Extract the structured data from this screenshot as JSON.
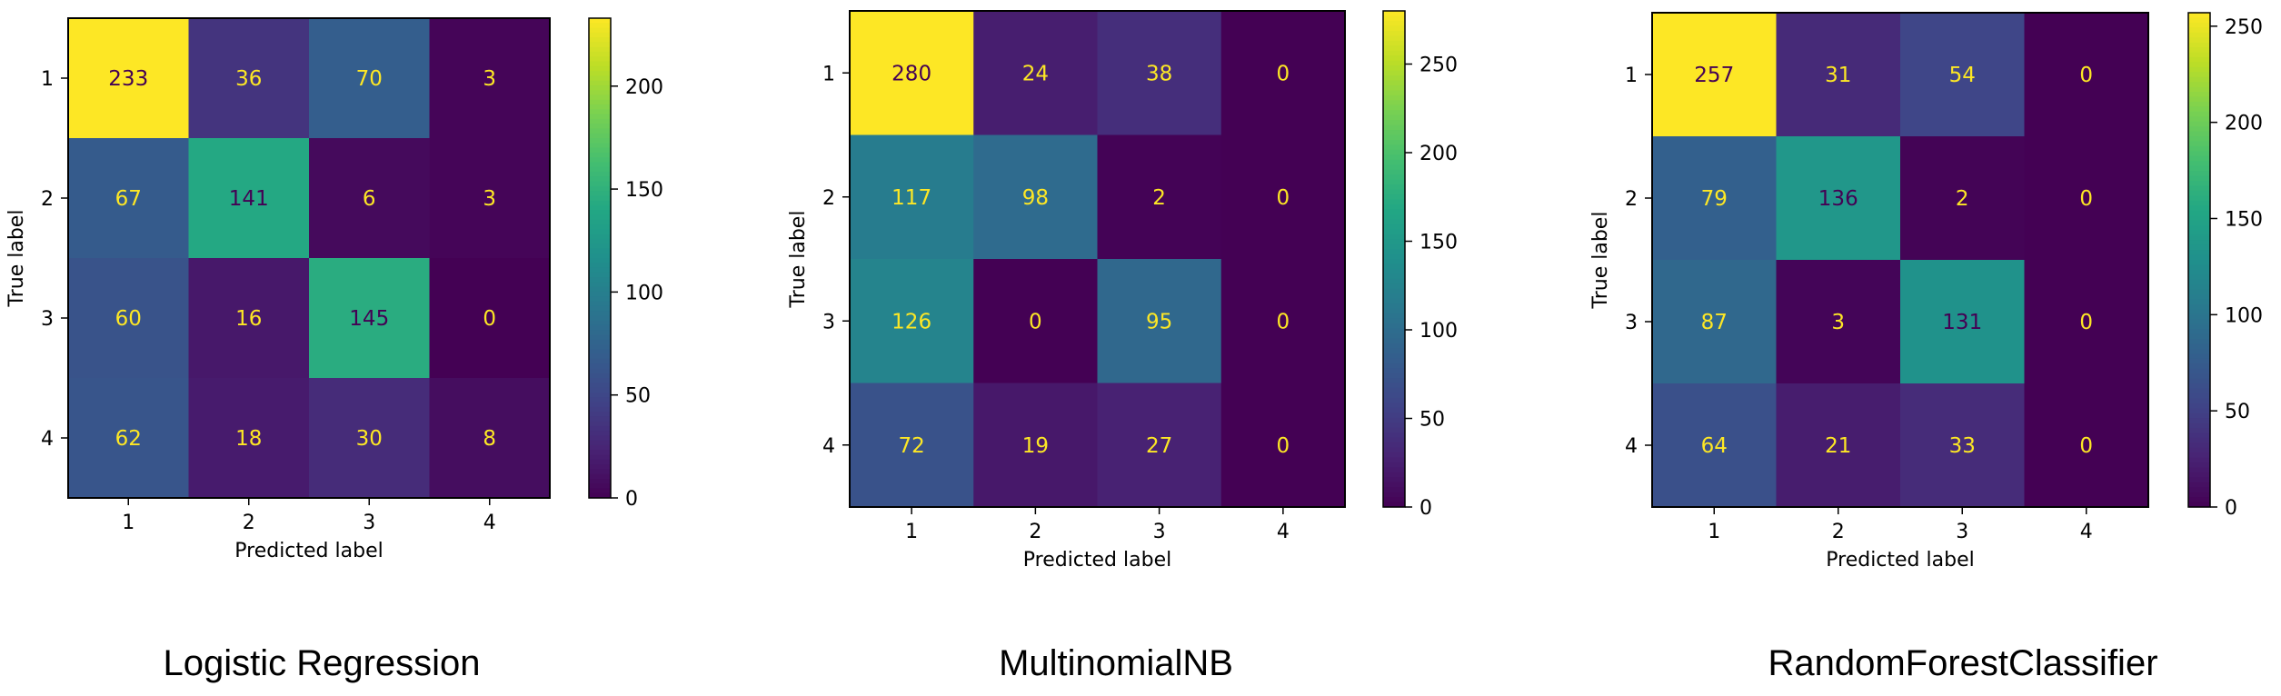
{
  "chart_data": [
    {
      "type": "heatmap",
      "title": "Logistic Regression",
      "xlabel": "Predicted label",
      "ylabel": "True label",
      "x_categories": [
        "1",
        "2",
        "3",
        "4"
      ],
      "y_categories": [
        "1",
        "2",
        "3",
        "4"
      ],
      "values": [
        [
          233,
          36,
          70,
          3
        ],
        [
          67,
          141,
          6,
          3
        ],
        [
          60,
          16,
          145,
          0
        ],
        [
          62,
          18,
          30,
          8
        ]
      ],
      "colormap": "viridis",
      "colorbar_range": [
        0,
        233
      ],
      "colorbar_ticks": [
        0,
        50,
        100,
        150,
        200
      ],
      "legend_placement": "right"
    },
    {
      "type": "heatmap",
      "title": "MultinomialNB",
      "xlabel": "Predicted label",
      "ylabel": "True label",
      "x_categories": [
        "1",
        "2",
        "3",
        "4"
      ],
      "y_categories": [
        "1",
        "2",
        "3",
        "4"
      ],
      "values": [
        [
          280,
          24,
          38,
          0
        ],
        [
          117,
          98,
          2,
          0
        ],
        [
          126,
          0,
          95,
          0
        ],
        [
          72,
          19,
          27,
          0
        ]
      ],
      "colormap": "viridis",
      "colorbar_range": [
        0,
        280
      ],
      "colorbar_ticks": [
        0,
        50,
        100,
        150,
        200,
        250
      ],
      "legend_placement": "right"
    },
    {
      "type": "heatmap",
      "title": "RandomForestClassifier",
      "xlabel": "Predicted label",
      "ylabel": "True label",
      "x_categories": [
        "1",
        "2",
        "3",
        "4"
      ],
      "y_categories": [
        "1",
        "2",
        "3",
        "4"
      ],
      "values": [
        [
          257,
          31,
          54,
          0
        ],
        [
          79,
          136,
          2,
          0
        ],
        [
          87,
          3,
          131,
          0
        ],
        [
          64,
          21,
          33,
          0
        ]
      ],
      "colormap": "viridis",
      "colorbar_range": [
        0,
        257
      ],
      "colorbar_ticks": [
        0,
        50,
        100,
        150,
        200,
        250
      ],
      "legend_placement": "right"
    }
  ],
  "colors": {
    "low_text": "#fde725",
    "high_text": "#440154",
    "axis": "#000000"
  }
}
